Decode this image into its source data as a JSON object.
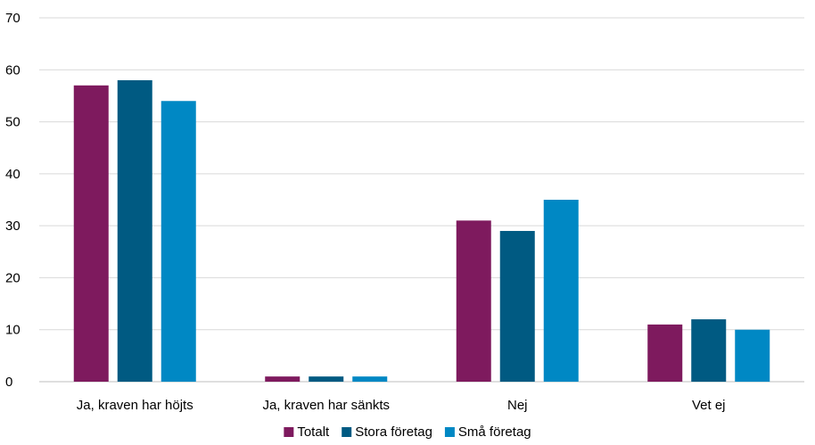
{
  "chart_data": {
    "type": "bar",
    "categories": [
      "Ja, kraven har höjts",
      "Ja, kraven har sänkts",
      "Nej",
      "Vet ej"
    ],
    "series": [
      {
        "name": "Totalt",
        "values": [
          57,
          1,
          31,
          11
        ],
        "color": "#7e1a5e"
      },
      {
        "name": "Stora företag",
        "values": [
          58,
          1,
          29,
          12
        ],
        "color": "#005a82"
      },
      {
        "name": "Små företag",
        "values": [
          54,
          1,
          35,
          10
        ],
        "color": "#0088c4"
      }
    ],
    "ylim": [
      0,
      70
    ],
    "yticks": [
      0,
      10,
      20,
      30,
      40,
      50,
      60,
      70
    ],
    "grid": true,
    "legend_position": "bottom",
    "gridline_color": "#d9d9d9"
  }
}
